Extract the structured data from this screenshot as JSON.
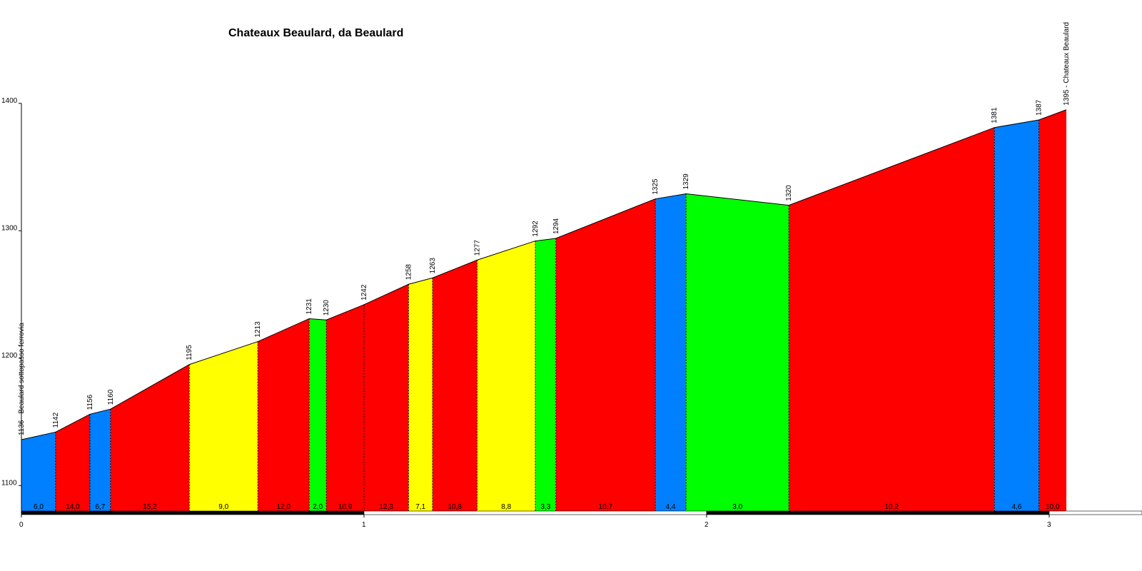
{
  "chart_data": {
    "type": "area",
    "title": "Chateaux Beaulard, da Beaulard",
    "xlabel": "",
    "ylabel": "",
    "xlim": [
      0,
      3.2
    ],
    "ylim": [
      1080,
      1400
    ],
    "yticks": [
      1100,
      1200,
      1300,
      1400
    ],
    "xticks": [
      0,
      1,
      2,
      3
    ],
    "grid": false,
    "colors": {
      "blue": "#0080ff",
      "red": "#ff0000",
      "yellow": "#ffff00",
      "green": "#00ff00"
    },
    "points": [
      {
        "x": 0.0,
        "y": 1136,
        "label": "1136 - Beaulard sottopasso ferrovia"
      },
      {
        "x": 0.1,
        "y": 1142,
        "label": "1142"
      },
      {
        "x": 0.2,
        "y": 1156,
        "label": "1156"
      },
      {
        "x": 0.26,
        "y": 1160,
        "label": "1160"
      },
      {
        "x": 0.49,
        "y": 1195,
        "label": "1195"
      },
      {
        "x": 0.69,
        "y": 1213,
        "label": "1213"
      },
      {
        "x": 0.84,
        "y": 1231,
        "label": "1231"
      },
      {
        "x": 0.89,
        "y": 1230,
        "label": "1230"
      },
      {
        "x": 1.0,
        "y": 1242,
        "label": "1242"
      },
      {
        "x": 1.13,
        "y": 1258,
        "label": "1258"
      },
      {
        "x": 1.2,
        "y": 1263,
        "label": "1263"
      },
      {
        "x": 1.33,
        "y": 1277,
        "label": "1277"
      },
      {
        "x": 1.5,
        "y": 1292,
        "label": "1292"
      },
      {
        "x": 1.56,
        "y": 1294,
        "label": "1294"
      },
      {
        "x": 1.85,
        "y": 1325,
        "label": "1325"
      },
      {
        "x": 1.94,
        "y": 1329,
        "label": "1329"
      },
      {
        "x": 2.24,
        "y": 1320,
        "label": "1320"
      },
      {
        "x": 2.84,
        "y": 1381,
        "label": "1381"
      },
      {
        "x": 2.97,
        "y": 1387,
        "label": "1387"
      },
      {
        "x": 3.05,
        "y": 1395,
        "label": "1395 - Chateaux Beaulard"
      }
    ],
    "segments": [
      {
        "gradient": "6,0",
        "color": "blue"
      },
      {
        "gradient": "14,0",
        "color": "red"
      },
      {
        "gradient": "6,7",
        "color": "blue"
      },
      {
        "gradient": "15,2",
        "color": "red"
      },
      {
        "gradient": "9,0",
        "color": "yellow"
      },
      {
        "gradient": "12,0",
        "color": "red"
      },
      {
        "gradient": "2,0",
        "color": "green"
      },
      {
        "gradient": "10,9",
        "color": "red"
      },
      {
        "gradient": "12,3",
        "color": "red"
      },
      {
        "gradient": "7,1",
        "color": "yellow"
      },
      {
        "gradient": "10,8",
        "color": "red"
      },
      {
        "gradient": "8,8",
        "color": "yellow"
      },
      {
        "gradient": "3,3",
        "color": "green"
      },
      {
        "gradient": "10,7",
        "color": "red"
      },
      {
        "gradient": "4,4",
        "color": "blue"
      },
      {
        "gradient": "3,0",
        "color": "green"
      },
      {
        "gradient": "10,2",
        "color": "red"
      },
      {
        "gradient": "4,6",
        "color": "blue"
      },
      {
        "gradient": "10,0",
        "color": "red"
      }
    ]
  }
}
